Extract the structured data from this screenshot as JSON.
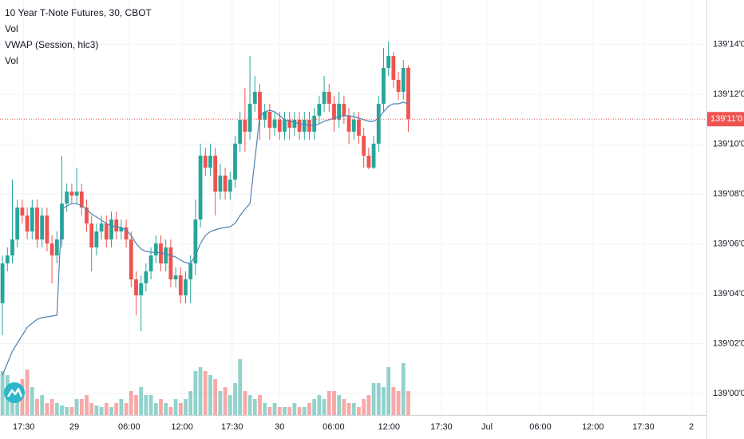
{
  "chart_data": {
    "type": "candlestick",
    "title": "10 Year T-Note Futures, 30, CBOT",
    "annotations": [
      "Vol",
      "VWAP (Session, hlc3)",
      "Vol"
    ],
    "up_color": "#26a69a",
    "down_color": "#ef5350",
    "vwap_color": "#4f83b3",
    "grid": true,
    "ylim": [
      138.973,
      139.493
    ],
    "yticks": [
      {
        "value": 139.4375,
        "label": "139'14'0"
      },
      {
        "value": 139.375,
        "label": "139'12'0"
      },
      {
        "value": 139.3125,
        "label": "139'10'0"
      },
      {
        "value": 139.25,
        "label": "139'08'0"
      },
      {
        "value": 139.1875,
        "label": "139'06'0"
      },
      {
        "value": 139.125,
        "label": "139'04'0"
      },
      {
        "value": 139.0625,
        "label": "139'02'0"
      },
      {
        "value": 139.0,
        "label": "139'00'0"
      }
    ],
    "last_price": {
      "value": 139.34375,
      "label": "139'11'0",
      "color": "#ef5350"
    },
    "xlim": [
      -0.5,
      142.25
    ],
    "xticks": [
      {
        "value": 4.3,
        "label": "17:30"
      },
      {
        "value": 14.5,
        "label": "29"
      },
      {
        "value": 25.6,
        "label": "06:00"
      },
      {
        "value": 36.3,
        "label": "12:00"
      },
      {
        "value": 46.4,
        "label": "17:30"
      },
      {
        "value": 56,
        "label": "30"
      },
      {
        "value": 66.9,
        "label": "06:00"
      },
      {
        "value": 78.1,
        "label": "12:00"
      },
      {
        "value": 88.7,
        "label": "17:30"
      },
      {
        "value": 97.9,
        "label": "Jul"
      },
      {
        "value": 108.7,
        "label": "06:00"
      },
      {
        "value": 119.3,
        "label": "12:00"
      },
      {
        "value": 129.5,
        "label": "17:30"
      },
      {
        "value": 139.2,
        "label": "2"
      }
    ],
    "open": [
      139.113,
      139.163,
      139.173,
      139.193,
      139.233,
      139.223,
      139.203,
      139.233,
      139.193,
      139.223,
      139.188,
      139.173,
      139.193,
      139.238,
      139.253,
      139.248,
      139.253,
      139.233,
      139.213,
      139.183,
      139.203,
      139.213,
      139.193,
      139.218,
      139.203,
      139.208,
      139.193,
      139.143,
      139.123,
      139.138,
      139.153,
      139.173,
      139.188,
      139.163,
      139.183,
      139.143,
      139.148,
      139.123,
      139.143,
      139.163,
      139.218,
      139.298,
      139.283,
      139.298,
      139.253,
      139.273,
      139.253,
      139.268,
      139.313,
      139.343,
      139.328,
      139.363,
      139.378,
      139.343,
      139.353,
      139.333,
      139.343,
      139.328,
      139.343,
      139.333,
      139.343,
      139.328,
      139.343,
      139.328,
      139.348,
      139.363,
      139.378,
      139.363,
      139.343,
      139.363,
      139.348,
      139.328,
      139.343,
      139.323,
      139.298,
      139.283,
      139.313,
      139.363,
      139.408,
      139.423,
      139.393,
      139.378,
      139.408
    ],
    "high": [
      139.173,
      139.183,
      139.268,
      139.243,
      139.243,
      139.233,
      139.243,
      139.243,
      139.233,
      139.233,
      139.198,
      139.203,
      139.298,
      139.263,
      139.263,
      139.283,
      139.263,
      139.243,
      139.223,
      139.213,
      139.223,
      139.223,
      139.228,
      139.228,
      139.218,
      139.218,
      139.203,
      139.153,
      139.148,
      139.163,
      139.183,
      139.198,
      139.198,
      139.193,
      139.193,
      139.158,
      139.158,
      139.153,
      139.173,
      139.243,
      139.313,
      139.308,
      139.313,
      139.308,
      139.288,
      139.283,
      139.278,
      139.323,
      139.353,
      139.383,
      139.423,
      139.398,
      139.388,
      139.363,
      139.363,
      139.353,
      139.353,
      139.353,
      139.353,
      139.353,
      139.353,
      139.353,
      139.353,
      139.358,
      139.373,
      139.398,
      139.388,
      139.373,
      139.378,
      139.373,
      139.358,
      139.353,
      139.353,
      139.333,
      139.308,
      139.323,
      139.373,
      139.433,
      139.441,
      139.428,
      139.403,
      139.418,
      139.411
    ],
    "low": [
      139.073,
      139.153,
      139.163,
      139.183,
      139.213,
      139.193,
      139.193,
      139.183,
      139.183,
      139.178,
      139.138,
      139.163,
      139.183,
      139.228,
      139.238,
      139.238,
      139.223,
      139.203,
      139.153,
      139.173,
      139.193,
      139.183,
      139.183,
      139.193,
      139.193,
      139.183,
      139.133,
      139.098,
      139.078,
      139.128,
      139.143,
      139.163,
      139.153,
      139.153,
      139.133,
      139.133,
      139.113,
      139.113,
      139.113,
      139.148,
      139.208,
      139.273,
      139.273,
      139.223,
      139.243,
      139.243,
      139.243,
      139.258,
      139.303,
      139.303,
      139.318,
      139.353,
      139.318,
      139.333,
      139.318,
      139.323,
      139.318,
      139.318,
      139.318,
      139.323,
      139.318,
      139.318,
      139.318,
      139.318,
      139.338,
      139.353,
      139.353,
      139.328,
      139.333,
      139.338,
      139.313,
      139.318,
      139.313,
      139.283,
      139.281,
      139.281,
      139.303,
      139.353,
      139.398,
      139.383,
      139.368,
      139.368,
      139.328
    ],
    "close": [
      139.163,
      139.173,
      139.193,
      139.233,
      139.223,
      139.203,
      139.233,
      139.193,
      139.223,
      139.188,
      139.173,
      139.193,
      139.238,
      139.253,
      139.248,
      139.253,
      139.233,
      139.213,
      139.183,
      139.203,
      139.213,
      139.193,
      139.218,
      139.203,
      139.208,
      139.193,
      139.143,
      139.123,
      139.138,
      139.153,
      139.173,
      139.188,
      139.163,
      139.183,
      139.143,
      139.148,
      139.123,
      139.143,
      139.163,
      139.218,
      139.298,
      139.283,
      139.298,
      139.253,
      139.273,
      139.253,
      139.268,
      139.313,
      139.343,
      139.328,
      139.363,
      139.378,
      139.343,
      139.353,
      139.333,
      139.343,
      139.328,
      139.343,
      139.333,
      139.343,
      139.328,
      139.343,
      139.328,
      139.348,
      139.363,
      139.378,
      139.363,
      139.343,
      139.363,
      139.348,
      139.328,
      139.343,
      139.323,
      139.298,
      139.283,
      139.313,
      139.363,
      139.408,
      139.423,
      139.393,
      139.378,
      139.408,
      139.344
    ],
    "volume": [
      55,
      50,
      40,
      25,
      45,
      57,
      35,
      20,
      25,
      15,
      20,
      15,
      12,
      10,
      10,
      20,
      20,
      25,
      15,
      12,
      10,
      15,
      10,
      15,
      20,
      15,
      30,
      25,
      35,
      25,
      25,
      15,
      20,
      15,
      10,
      20,
      15,
      20,
      30,
      55,
      60,
      55,
      50,
      45,
      30,
      35,
      25,
      40,
      70,
      30,
      25,
      20,
      25,
      15,
      10,
      15,
      10,
      10,
      10,
      15,
      10,
      10,
      15,
      20,
      25,
      20,
      30,
      30,
      25,
      20,
      15,
      15,
      10,
      20,
      25,
      40,
      40,
      35,
      60,
      35,
      30,
      65,
      30
    ],
    "vwap": [
      139.023,
      139.038,
      139.053,
      139.063,
      139.073,
      139.083,
      139.088,
      139.093,
      139.095,
      139.096,
      139.097,
      139.098,
      139.231,
      139.235,
      139.238,
      139.238,
      139.235,
      139.231,
      139.225,
      139.221,
      139.217,
      139.213,
      139.21,
      139.209,
      139.208,
      139.205,
      139.198,
      139.188,
      139.181,
      139.178,
      139.177,
      139.177,
      139.176,
      139.175,
      139.173,
      139.171,
      139.167,
      139.164,
      139.163,
      139.173,
      139.188,
      139.198,
      139.203,
      139.205,
      139.207,
      139.208,
      139.209,
      139.213,
      139.223,
      139.231,
      139.238,
      139.293,
      139.348,
      139.353,
      139.355,
      139.353,
      139.348,
      139.343,
      139.341,
      139.34,
      139.338,
      139.337,
      139.336,
      139.336,
      139.338,
      139.341,
      139.343,
      139.345,
      139.347,
      139.348,
      139.348,
      139.347,
      139.345,
      139.343,
      139.341,
      139.341,
      139.345,
      139.353,
      139.36,
      139.363,
      139.363,
      139.365,
      139.363
    ]
  }
}
